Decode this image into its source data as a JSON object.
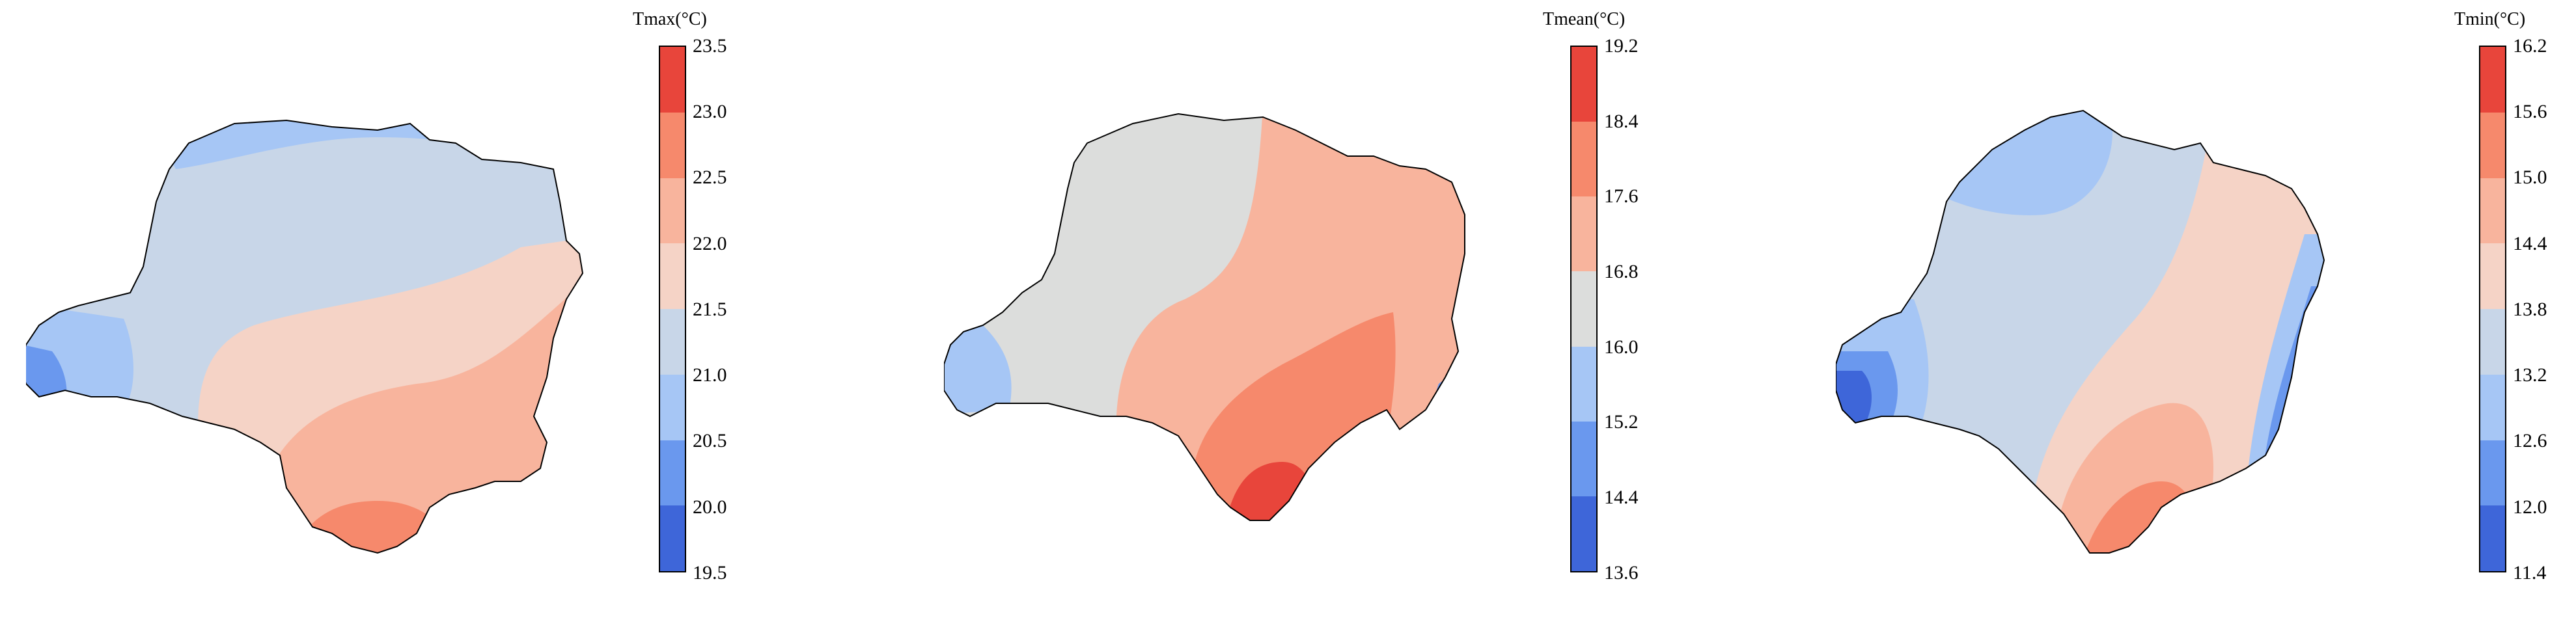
{
  "colors": {
    "bins": [
      "#3e66d9",
      "#6a98ee",
      "#a6c6f5",
      "#c8d6e8",
      "#dcdddc",
      "#f5d3c6",
      "#f8b49d",
      "#f6896c",
      "#e8453b"
    ],
    "outline": "#000000"
  },
  "panels": [
    {
      "variable": "Tmax",
      "colorbar_title": "Tmax(°C)",
      "ticks": [
        "23.5",
        "23.0",
        "22.5",
        "22.0",
        "21.5",
        "21.0",
        "20.5",
        "20.0",
        "19.5"
      ],
      "bins_top_to_bottom": [
        "#e8453b",
        "#f6896c",
        "#f8b49d",
        "#f5d3c6",
        "#c8d6e8",
        "#a6c6f5",
        "#6a98ee",
        "#3e66d9"
      ]
    },
    {
      "variable": "Tmean",
      "colorbar_title": "Tmean(°C)",
      "ticks": [
        "19.2",
        "18.4",
        "17.6",
        "16.8",
        "16.0",
        "15.2",
        "14.4",
        "13.6"
      ],
      "bins_top_to_bottom": [
        "#e8453b",
        "#f6896c",
        "#f8b49d",
        "#dcdddc",
        "#a6c6f5",
        "#6a98ee",
        "#3e66d9"
      ]
    },
    {
      "variable": "Tmin",
      "colorbar_title": "Tmin(°C)",
      "ticks": [
        "16.2",
        "15.6",
        "15.0",
        "14.4",
        "13.8",
        "13.2",
        "12.6",
        "12.0",
        "11.4"
      ],
      "bins_top_to_bottom": [
        "#e8453b",
        "#f6896c",
        "#f8b49d",
        "#f5d3c6",
        "#c8d6e8",
        "#a6c6f5",
        "#6a98ee",
        "#3e66d9"
      ]
    }
  ]
}
